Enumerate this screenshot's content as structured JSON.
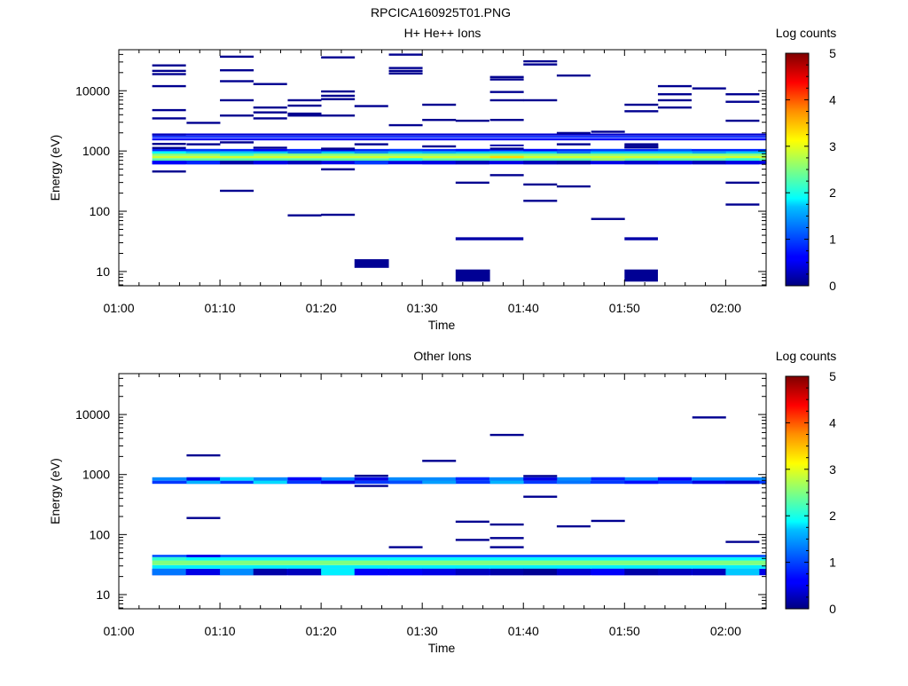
{
  "figure_title": "RPCICA160925T01.PNG",
  "chart_data": [
    {
      "type": "heatmap",
      "title": "H+ He++ Ions",
      "xlabel": "Time",
      "ylabel": "Energy (eV)",
      "x_ticks": [
        "01:00",
        "01:10",
        "01:20",
        "01:30",
        "01:40",
        "01:50",
        "02:00"
      ],
      "x_range_minutes": [
        0,
        64
      ],
      "y_ticks": [
        10,
        100,
        1000,
        10000
      ],
      "y_scale": "log",
      "y_range": [
        5.8,
        48000
      ],
      "colorbar": {
        "label": "Log counts",
        "range": [
          0,
          5
        ],
        "ticks": [
          "0",
          "1",
          "2",
          "3",
          "4",
          "5"
        ]
      },
      "bands": [
        {
          "e_lo": 600,
          "e_hi": 690,
          "c": 0.5
        },
        {
          "e_lo": 690,
          "e_hi": 760,
          "c": 2.3
        },
        {
          "e_lo": 760,
          "e_hi": 830,
          "c": 2.9
        },
        {
          "e_lo": 830,
          "e_hi": 910,
          "c": 2.5
        },
        {
          "e_lo": 910,
          "e_hi": 990,
          "c": 1.6
        },
        {
          "e_lo": 990,
          "e_hi": 1080,
          "c": 0.8
        }
      ],
      "strips": [
        {
          "e_lo": 1500,
          "e_hi": 1620,
          "c": 0.6
        },
        {
          "e_lo": 1650,
          "e_hi": 1780,
          "c": 0.8
        },
        {
          "e_lo": 1800,
          "e_hi": 1950,
          "c": 0.4
        }
      ],
      "blocks": [
        {
          "t0": 23.3,
          "t1": 26.7,
          "e_lo": 11.5,
          "e_hi": 16.0,
          "c": 0.1
        },
        {
          "t0": 33.3,
          "t1": 36.7,
          "e_lo": 6.8,
          "e_hi": 10.8,
          "c": 0.1
        },
        {
          "t0": 50.0,
          "t1": 53.3,
          "e_lo": 6.8,
          "e_hi": 10.8,
          "c": 0.1
        },
        {
          "t0": 33.3,
          "t1": 40.0,
          "e_lo": 33.0,
          "e_hi": 37.0,
          "c": 0.2
        },
        {
          "t0": 50.0,
          "t1": 53.3,
          "e_lo": 33.0,
          "e_hi": 37.0,
          "c": 0.2
        }
      ],
      "lines": [
        [
          3.3,
          26500
        ],
        [
          3.3,
          21500
        ],
        [
          3.3,
          19000
        ],
        [
          3.3,
          12000
        ],
        [
          3.3,
          4800
        ],
        [
          3.3,
          3500
        ],
        [
          3.3,
          1320
        ],
        [
          3.3,
          1130
        ],
        [
          3.3,
          460
        ],
        [
          6.7,
          2950
        ],
        [
          6.7,
          1300
        ],
        [
          10.0,
          37000
        ],
        [
          10.0,
          22000
        ],
        [
          10.0,
          14500
        ],
        [
          10.0,
          7000
        ],
        [
          10.0,
          3900
        ],
        [
          10.0,
          1400
        ],
        [
          10.0,
          220
        ],
        [
          13.3,
          13000
        ],
        [
          13.3,
          5300
        ],
        [
          13.3,
          4400
        ],
        [
          13.3,
          3500
        ],
        [
          13.3,
          1140
        ],
        [
          16.7,
          7000
        ],
        [
          16.7,
          5700
        ],
        [
          16.7,
          4200
        ],
        [
          16.7,
          3900
        ],
        [
          16.7,
          86
        ],
        [
          20.0,
          36000
        ],
        [
          20.0,
          9800
        ],
        [
          20.0,
          8300
        ],
        [
          20.0,
          7300
        ],
        [
          20.0,
          3900
        ],
        [
          20.0,
          1100
        ],
        [
          20.0,
          500
        ],
        [
          20.0,
          88
        ],
        [
          23.3,
          5600
        ],
        [
          23.3,
          1300
        ],
        [
          26.7,
          40000
        ],
        [
          26.7,
          24000
        ],
        [
          26.7,
          21500
        ],
        [
          26.7,
          19500
        ],
        [
          26.7,
          2700
        ],
        [
          30.0,
          5900
        ],
        [
          30.0,
          3300
        ],
        [
          30.0,
          1200
        ],
        [
          33.3,
          3200
        ],
        [
          33.3,
          300
        ],
        [
          36.7,
          17000
        ],
        [
          36.7,
          15500
        ],
        [
          36.7,
          9600
        ],
        [
          36.7,
          7000
        ],
        [
          36.7,
          3300
        ],
        [
          36.7,
          1100
        ],
        [
          36.7,
          400
        ],
        [
          40.0,
          31000
        ],
        [
          40.0,
          27500
        ],
        [
          40.0,
          7000
        ],
        [
          40.0,
          280
        ],
        [
          40.0,
          150
        ],
        [
          43.3,
          18000
        ],
        [
          43.3,
          2000
        ],
        [
          43.3,
          1300
        ],
        [
          43.3,
          260
        ],
        [
          46.7,
          2100
        ],
        [
          46.7,
          75
        ],
        [
          50.0,
          5900
        ],
        [
          50.0,
          4600
        ],
        [
          50.0,
          1300
        ],
        [
          50.0,
          1160
        ],
        [
          53.3,
          12000
        ],
        [
          53.3,
          8800
        ],
        [
          53.3,
          7000
        ],
        [
          53.3,
          5300
        ],
        [
          56.7,
          11000
        ],
        [
          60.0,
          8800
        ],
        [
          60.0,
          6600
        ],
        [
          60.0,
          3200
        ],
        [
          60.0,
          300
        ],
        [
          60.0,
          130
        ]
      ],
      "cells": [
        [
          3.3,
          600,
          690,
          0.6
        ],
        [
          3.3,
          910,
          990,
          1.9
        ],
        [
          3.3,
          1800,
          1950,
          0.3
        ],
        [
          6.7,
          990,
          1080,
          0.9
        ],
        [
          6.7,
          600,
          690,
          0.8
        ],
        [
          10.0,
          830,
          910,
          2.2
        ],
        [
          10.0,
          600,
          690,
          0.2
        ],
        [
          13.3,
          990,
          1080,
          0.6
        ],
        [
          13.3,
          600,
          690,
          0.5
        ],
        [
          16.7,
          910,
          990,
          1.2
        ],
        [
          16.7,
          600,
          690,
          0.3
        ],
        [
          20.0,
          990,
          1080,
          0.5
        ],
        [
          23.3,
          600,
          690,
          0.9
        ],
        [
          23.3,
          910,
          990,
          1.3
        ],
        [
          26.7,
          990,
          1080,
          0.9
        ],
        [
          26.7,
          690,
          760,
          2.0
        ],
        [
          30.0,
          910,
          990,
          1.5
        ],
        [
          30.0,
          600,
          690,
          0.5
        ],
        [
          33.3,
          600,
          690,
          0.3
        ],
        [
          33.3,
          990,
          1080,
          0.7
        ],
        [
          36.7,
          760,
          830,
          3.3
        ],
        [
          36.7,
          1200,
          1280,
          0.2
        ],
        [
          40.0,
          600,
          690,
          0.3
        ],
        [
          40.0,
          990,
          1080,
          0.6
        ],
        [
          43.3,
          600,
          690,
          0.2
        ],
        [
          43.3,
          910,
          990,
          1.2
        ],
        [
          46.7,
          990,
          1080,
          0.9
        ],
        [
          46.7,
          690,
          760,
          2.6
        ],
        [
          50.0,
          1200,
          1280,
          0.1
        ],
        [
          50.0,
          1100,
          1200,
          0.1
        ],
        [
          50.0,
          600,
          690,
          0.4
        ],
        [
          53.3,
          600,
          690,
          0.5
        ],
        [
          53.3,
          990,
          1080,
          1.0
        ],
        [
          56.7,
          600,
          690,
          0.3
        ],
        [
          56.7,
          910,
          990,
          1.4
        ],
        [
          60.0,
          600,
          690,
          0.5
        ],
        [
          60.0,
          690,
          760,
          2.1
        ]
      ]
    },
    {
      "type": "heatmap",
      "title": "Other Ions",
      "xlabel": "Time",
      "ylabel": "Energy (eV)",
      "x_ticks": [
        "01:00",
        "01:10",
        "01:20",
        "01:30",
        "01:40",
        "01:50",
        "02:00"
      ],
      "x_range_minutes": [
        0,
        64
      ],
      "y_ticks": [
        10,
        100,
        1000,
        10000
      ],
      "y_scale": "log",
      "y_range": [
        5.8,
        48000
      ],
      "colorbar": {
        "label": "Log counts",
        "range": [
          0,
          5
        ],
        "ticks": [
          "0",
          "1",
          "2",
          "3",
          "4",
          "5"
        ]
      },
      "bands": [
        {
          "e_lo": 21,
          "e_hi": 27,
          "c": 0.5
        },
        {
          "e_lo": 27,
          "e_hi": 31,
          "c": 1.8
        },
        {
          "e_lo": 31,
          "e_hi": 37,
          "c": 2.5
        },
        {
          "e_lo": 37,
          "e_hi": 42,
          "c": 1.9
        },
        {
          "e_lo": 42,
          "e_hi": 46,
          "c": 1.0
        },
        {
          "e_lo": 700,
          "e_hi": 790,
          "c": 0.9
        },
        {
          "e_lo": 790,
          "e_hi": 900,
          "c": 1.3
        }
      ],
      "strips": [],
      "blocks": [],
      "lines": [
        [
          6.7,
          2100
        ],
        [
          6.7,
          190
        ],
        [
          23.3,
          960
        ],
        [
          23.3,
          650
        ],
        [
          26.7,
          62
        ],
        [
          30.0,
          1700
        ],
        [
          33.3,
          165
        ],
        [
          33.3,
          82
        ],
        [
          36.7,
          4600
        ],
        [
          36.7,
          148
        ],
        [
          36.7,
          88
        ],
        [
          36.7,
          62
        ],
        [
          40.0,
          950
        ],
        [
          40.0,
          430
        ],
        [
          43.3,
          138
        ],
        [
          46.7,
          170
        ],
        [
          56.7,
          9000
        ],
        [
          60.0,
          76
        ]
      ],
      "cells": [
        [
          3.3,
          21,
          27,
          1.2
        ],
        [
          3.3,
          37,
          42,
          2.1
        ],
        [
          6.7,
          42,
          46,
          0.5
        ],
        [
          6.7,
          790,
          900,
          0.5
        ],
        [
          6.7,
          700,
          790,
          1.5
        ],
        [
          10.0,
          21,
          27,
          1.3
        ],
        [
          10.0,
          790,
          900,
          1.7
        ],
        [
          13.3,
          21,
          27,
          0.2
        ],
        [
          13.3,
          700,
          790,
          1.7
        ],
        [
          16.7,
          21,
          27,
          0.3
        ],
        [
          16.7,
          790,
          900,
          0.6
        ],
        [
          20.0,
          21,
          27,
          1.8
        ],
        [
          20.0,
          700,
          790,
          0.5
        ],
        [
          23.3,
          21,
          27,
          0.6
        ],
        [
          23.3,
          790,
          900,
          0.5
        ],
        [
          26.7,
          21,
          27,
          0.6
        ],
        [
          26.7,
          700,
          790,
          1.0
        ],
        [
          30.0,
          21,
          27,
          0.5
        ],
        [
          30.0,
          700,
          790,
          1.4
        ],
        [
          33.3,
          21,
          27,
          0.3
        ],
        [
          33.3,
          790,
          900,
          0.8
        ],
        [
          36.7,
          21,
          27,
          0.2
        ],
        [
          36.7,
          700,
          790,
          1.5
        ],
        [
          40.0,
          21,
          27,
          0.1
        ],
        [
          40.0,
          790,
          900,
          0.5
        ],
        [
          43.3,
          21,
          27,
          0.4
        ],
        [
          43.3,
          700,
          790,
          1.2
        ],
        [
          46.7,
          21,
          27,
          0.6
        ],
        [
          46.7,
          790,
          900,
          0.8
        ],
        [
          50.0,
          21,
          27,
          0.2
        ],
        [
          50.0,
          700,
          790,
          0.7
        ],
        [
          53.3,
          21,
          27,
          0.3
        ],
        [
          53.3,
          790,
          900,
          0.6
        ],
        [
          56.7,
          21,
          27,
          0.3
        ],
        [
          56.7,
          700,
          790,
          0.5
        ],
        [
          60.0,
          21,
          27,
          1.6
        ],
        [
          60.0,
          700,
          790,
          0.4
        ]
      ]
    }
  ]
}
